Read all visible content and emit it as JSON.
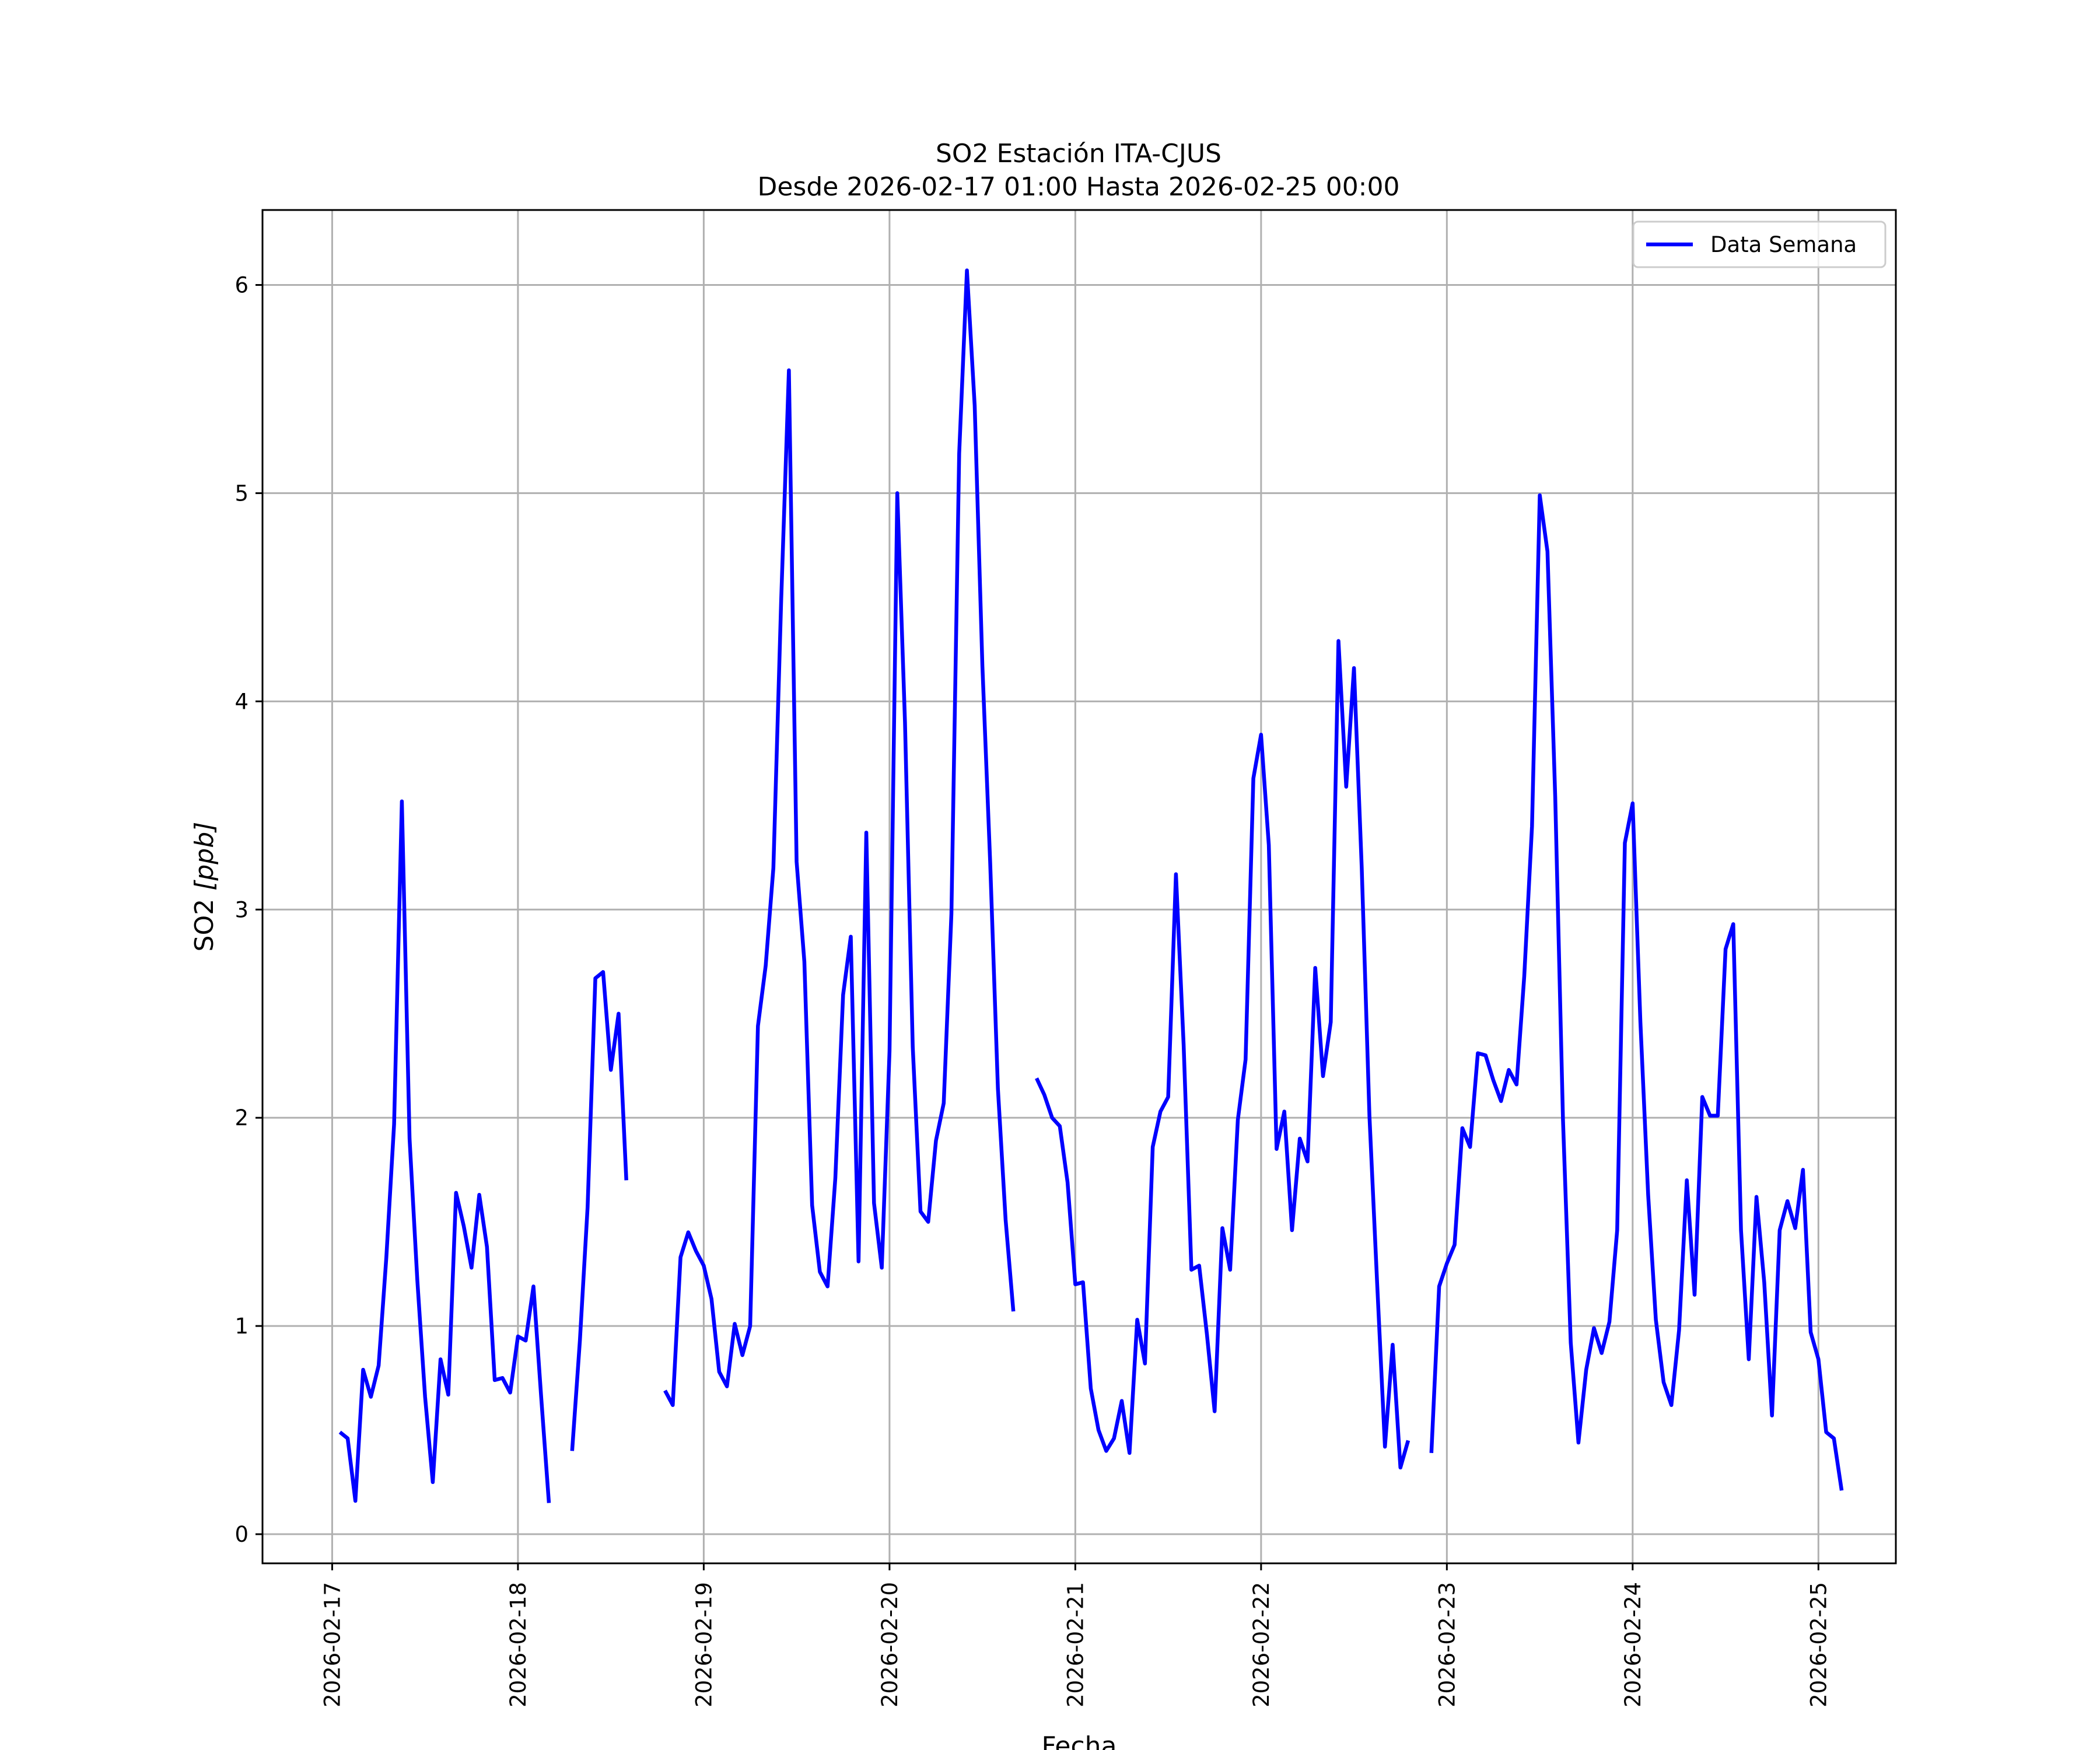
{
  "chart_data": {
    "type": "line",
    "title": "SO2 Estación ITA-CJUS",
    "subtitle": "Desde 2026-02-17 01:00 Hasta 2026-02-25 00:00",
    "xlabel": "Fecha",
    "ylabel_main": "SO2 ",
    "ylabel_unit": "[ppb]",
    "xlim": [
      "2026-02-16 15:00",
      "2026-02-25 10:00"
    ],
    "ylim": [
      -0.14,
      6.36
    ],
    "yticks": [
      0,
      1,
      2,
      3,
      4,
      5,
      6
    ],
    "ytick_labels": [
      "0",
      "1",
      "2",
      "3",
      "4",
      "5",
      "6"
    ],
    "xticks": [
      "2026-02-17",
      "2026-02-18",
      "2026-02-19",
      "2026-02-20",
      "2026-02-21",
      "2026-02-22",
      "2026-02-23",
      "2026-02-24",
      "2026-02-25"
    ],
    "grid": true,
    "legend_position": "top-right",
    "colors": {
      "series": "#0000ff",
      "grid": "#b0b0b0",
      "frame": "#000000"
    },
    "series": [
      {
        "name": "Data Semana",
        "x_start": "2026-02-17 01:00",
        "x_step": "1 hour",
        "values": [
          0.49,
          0.46,
          0.16,
          0.79,
          0.66,
          0.81,
          1.33,
          1.97,
          3.52,
          1.9,
          1.22,
          0.66,
          0.25,
          0.84,
          0.67,
          1.64,
          1.48,
          1.28,
          1.63,
          1.38,
          0.74,
          0.75,
          0.68,
          0.95,
          0.93,
          1.19,
          0.66,
          0.15,
          null,
          null,
          0.4,
          0.93,
          1.57,
          2.67,
          2.7,
          2.23,
          2.5,
          1.7,
          null,
          null,
          null,
          null,
          0.69,
          0.62,
          1.33,
          1.45,
          1.36,
          1.29,
          1.13,
          0.78,
          0.71,
          1.01,
          0.86,
          1.0,
          2.44,
          2.73,
          3.2,
          4.48,
          5.59,
          3.23,
          2.75,
          1.58,
          1.26,
          1.19,
          1.71,
          2.59,
          2.87,
          1.31,
          3.37,
          1.59,
          1.28,
          2.32,
          5.0,
          3.9,
          2.34,
          1.55,
          1.5,
          1.89,
          2.07,
          2.98,
          5.19,
          6.07,
          5.42,
          4.17,
          3.23,
          2.14,
          1.51,
          1.07,
          null,
          null,
          2.19,
          2.11,
          2.0,
          1.96,
          1.69,
          1.2,
          1.21,
          0.7,
          0.5,
          0.4,
          0.46,
          0.64,
          0.39,
          1.03,
          0.82,
          1.86,
          2.03,
          2.1,
          3.17,
          2.35,
          1.27,
          1.29,
          0.96,
          0.59,
          1.47,
          1.27,
          1.99,
          2.28,
          3.63,
          3.84,
          3.31,
          1.85,
          2.03,
          1.46,
          1.9,
          1.79,
          2.72,
          2.2,
          2.46,
          4.29,
          3.59,
          4.16,
          3.2,
          2.01,
          1.2,
          0.42,
          0.91,
          0.32,
          0.45,
          null,
          null,
          0.39,
          1.19,
          1.3,
          1.39,
          1.95,
          1.86,
          2.31,
          2.3,
          2.18,
          2.08,
          2.23,
          2.16,
          2.68,
          3.4,
          4.99,
          4.72,
          3.54,
          1.99,
          0.92,
          0.44,
          0.79,
          0.99,
          0.87,
          1.02,
          1.46,
          3.32,
          3.51,
          2.46,
          1.63,
          1.03,
          0.73,
          0.62,
          0.98,
          1.7,
          1.15,
          2.1,
          2.01,
          2.01,
          2.81,
          2.93,
          1.46,
          0.84,
          1.62,
          1.21,
          0.57,
          1.46,
          1.6,
          1.47,
          1.75,
          0.97,
          0.84,
          0.49,
          0.46,
          0.21
        ]
      }
    ]
  }
}
